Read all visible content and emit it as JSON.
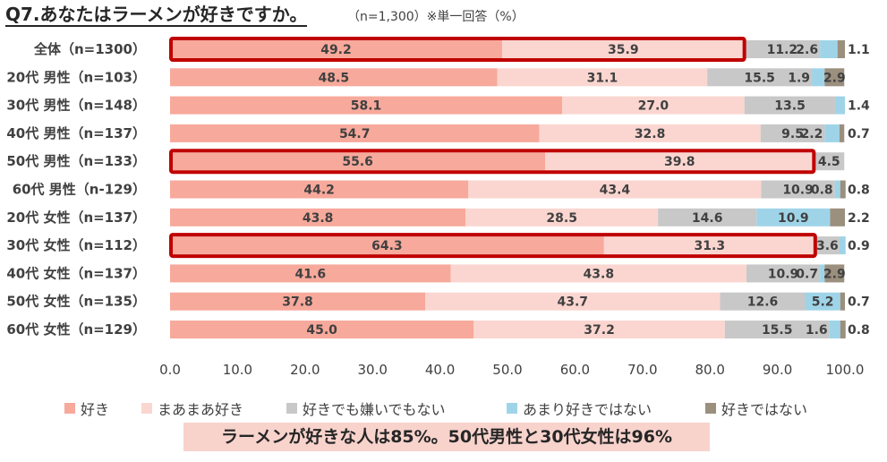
{
  "title": "Q7.あなたはラーメンが好きですか。",
  "subtitle": "（n=1,300）※単一回答（%）",
  "summary": "ラーメンが好きな人は85%。50代男性と30代女性は96%",
  "colors": {
    "好き": "#f7a99b",
    "まあまあ好き": "#fbd6d0",
    "好きでも嫌いでもない": "#c8c8c8",
    "あまり好きではない": "#9fd4e8",
    "好きではない": "#9b8f7e",
    "highlight": "#c00000"
  },
  "chart_data": {
    "type": "bar",
    "orientation": "horizontal",
    "stacked": true,
    "categories": [
      "全体（n=1300）",
      "20代 男性（n=103）",
      "30代 男性（n=148）",
      "40代 男性（n=137）",
      "50代 男性（n=133）",
      "60代 男性（n-129）",
      "20代 女性（n=137）",
      "30代 女性（n=112）",
      "40代 女性（n=137）",
      "50代 女性（n=135）",
      "60代 女性（n=129）"
    ],
    "series": [
      {
        "name": "好き",
        "values": [
          49.2,
          48.5,
          58.1,
          54.7,
          55.6,
          44.2,
          43.8,
          64.3,
          41.6,
          37.8,
          45.0
        ]
      },
      {
        "name": "まあまあ好き",
        "values": [
          35.9,
          31.1,
          27.0,
          32.8,
          39.8,
          43.4,
          28.5,
          31.3,
          43.8,
          43.7,
          37.2
        ]
      },
      {
        "name": "好きでも嫌いでもない",
        "values": [
          11.2,
          15.5,
          13.5,
          9.5,
          4.5,
          10.9,
          14.6,
          3.6,
          10.9,
          12.6,
          15.5
        ]
      },
      {
        "name": "あまり好きではない",
        "values": [
          2.6,
          1.9,
          1.4,
          2.2,
          0.0,
          0.8,
          10.9,
          0.9,
          0.7,
          5.2,
          1.6
        ]
      },
      {
        "name": "好きではない",
        "values": [
          1.1,
          2.9,
          0.0,
          0.7,
          0.0,
          0.8,
          2.2,
          0.0,
          2.9,
          0.7,
          0.8
        ]
      }
    ],
    "xlim": [
      0,
      100
    ],
    "x_ticks": [
      "0.0",
      "10.0",
      "20.0",
      "30.0",
      "40.0",
      "50.0",
      "60.0",
      "70.0",
      "80.0",
      "90.0",
      "100.0"
    ],
    "highlighted_categories": [
      "全体（n=1300）",
      "50代 男性（n=133）",
      "30代 女性（n=112）"
    ],
    "legend_position": "bottom",
    "grid": false
  }
}
